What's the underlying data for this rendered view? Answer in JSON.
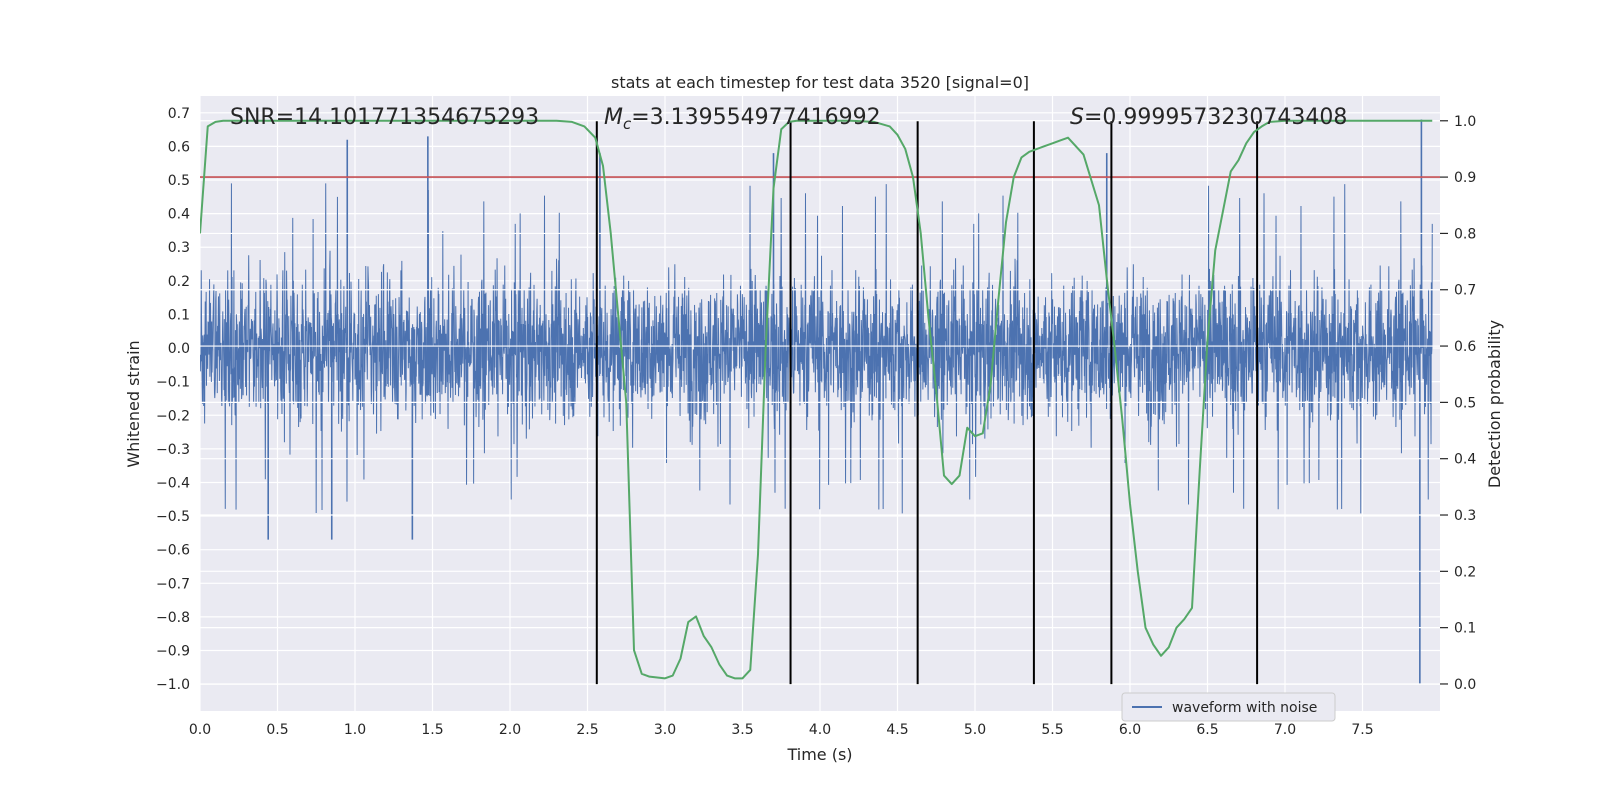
{
  "chart_data": {
    "type": "line",
    "title": "stats at each timestep for test data 3520 [signal=0]",
    "xlabel": "Time (s)",
    "ylabel_left": "Whitened strain",
    "ylabel_right": "Detection probability",
    "xlim": [
      0.0,
      8.0
    ],
    "ylim_left": [
      -1.08,
      0.75
    ],
    "ylim_right": [
      -0.048,
      1.044
    ],
    "x_ticks": [
      "0.0",
      "0.5",
      "1.0",
      "1.5",
      "2.0",
      "2.5",
      "3.0",
      "3.5",
      "4.0",
      "4.5",
      "5.0",
      "5.5",
      "6.0",
      "6.5",
      "7.0",
      "7.5"
    ],
    "y_left_ticks": [
      "0.7",
      "0.6",
      "0.5",
      "0.4",
      "0.3",
      "0.2",
      "0.1",
      "0.0",
      "−0.1",
      "−0.2",
      "−0.3",
      "−0.4",
      "−0.5",
      "−0.6",
      "−0.7",
      "−0.8",
      "−0.9",
      "−1.0"
    ],
    "y_right_ticks": [
      "1.0",
      "0.9",
      "0.8",
      "0.7",
      "0.6",
      "0.5",
      "0.4",
      "0.3",
      "0.2",
      "0.1",
      "0.0"
    ],
    "grid": true,
    "annotations": {
      "snr": "SNR=14.101771354675293",
      "mc_symbol": "M",
      "mc_sub": "c",
      "mc_value": "=3.139554977416992",
      "s_symbol": "S",
      "s_value": "=0.9999573230743408"
    },
    "threshold_probability": 0.9,
    "vertical_lines_x": [
      2.56,
      3.81,
      4.63,
      5.38,
      5.88,
      6.82
    ],
    "waveform": {
      "name": "waveform with noise",
      "color": "#4c72b0",
      "typical_amplitude": 0.3,
      "peak_spikes": [
        {
          "x": 0.95,
          "y": 0.62
        },
        {
          "x": 1.47,
          "y": 0.63
        },
        {
          "x": 2.58,
          "y": 0.58
        },
        {
          "x": 3.7,
          "y": 0.58
        },
        {
          "x": 5.85,
          "y": 0.58
        },
        {
          "x": 7.88,
          "y": 0.68
        },
        {
          "x": 7.87,
          "y": -1.0
        },
        {
          "x": 0.44,
          "y": -0.57
        },
        {
          "x": 0.85,
          "y": -0.57
        },
        {
          "x": 1.37,
          "y": -0.57
        }
      ]
    },
    "probability_series": {
      "color": "#55a868",
      "x": [
        0.0,
        0.05,
        0.1,
        0.15,
        0.2,
        0.3,
        0.5,
        1.0,
        1.5,
        2.0,
        2.3,
        2.4,
        2.48,
        2.55,
        2.6,
        2.65,
        2.7,
        2.75,
        2.8,
        2.85,
        2.9,
        3.0,
        3.05,
        3.1,
        3.15,
        3.2,
        3.25,
        3.3,
        3.35,
        3.4,
        3.45,
        3.5,
        3.55,
        3.6,
        3.65,
        3.7,
        3.75,
        3.8,
        3.85,
        3.9,
        4.0,
        4.2,
        4.35,
        4.45,
        4.5,
        4.55,
        4.6,
        4.65,
        4.7,
        4.75,
        4.8,
        4.85,
        4.9,
        4.95,
        5.0,
        5.05,
        5.1,
        5.15,
        5.2,
        5.25,
        5.3,
        5.35,
        5.4,
        5.45,
        5.5,
        5.55,
        5.6,
        5.7,
        5.8,
        5.85,
        5.9,
        5.95,
        6.0,
        6.05,
        6.1,
        6.15,
        6.2,
        6.25,
        6.3,
        6.35,
        6.4,
        6.45,
        6.5,
        6.55,
        6.6,
        6.65,
        6.7,
        6.75,
        6.8,
        6.85,
        6.9,
        6.95,
        7.0,
        7.05,
        7.1,
        7.2,
        7.5,
        7.95
      ],
      "values": [
        0.8,
        0.99,
        0.998,
        1.0,
        1.0,
        1.0,
        1.0,
        1.0,
        1.0,
        1.0,
        1.0,
        0.998,
        0.99,
        0.97,
        0.92,
        0.8,
        0.65,
        0.5,
        0.06,
        0.018,
        0.013,
        0.01,
        0.015,
        0.045,
        0.11,
        0.12,
        0.085,
        0.065,
        0.035,
        0.015,
        0.01,
        0.01,
        0.025,
        0.23,
        0.6,
        0.88,
        0.985,
        0.998,
        1.0,
        1.0,
        1.0,
        1.0,
        0.998,
        0.99,
        0.975,
        0.95,
        0.9,
        0.8,
        0.65,
        0.52,
        0.37,
        0.355,
        0.37,
        0.455,
        0.44,
        0.445,
        0.53,
        0.68,
        0.82,
        0.9,
        0.935,
        0.945,
        0.95,
        0.955,
        0.96,
        0.965,
        0.97,
        0.94,
        0.85,
        0.72,
        0.6,
        0.47,
        0.32,
        0.2,
        0.1,
        0.07,
        0.05,
        0.065,
        0.1,
        0.115,
        0.135,
        0.38,
        0.61,
        0.77,
        0.84,
        0.91,
        0.93,
        0.96,
        0.98,
        0.99,
        0.998,
        0.999,
        1.0,
        1.0,
        1.0,
        1.0,
        1.0,
        1.0
      ]
    }
  }
}
